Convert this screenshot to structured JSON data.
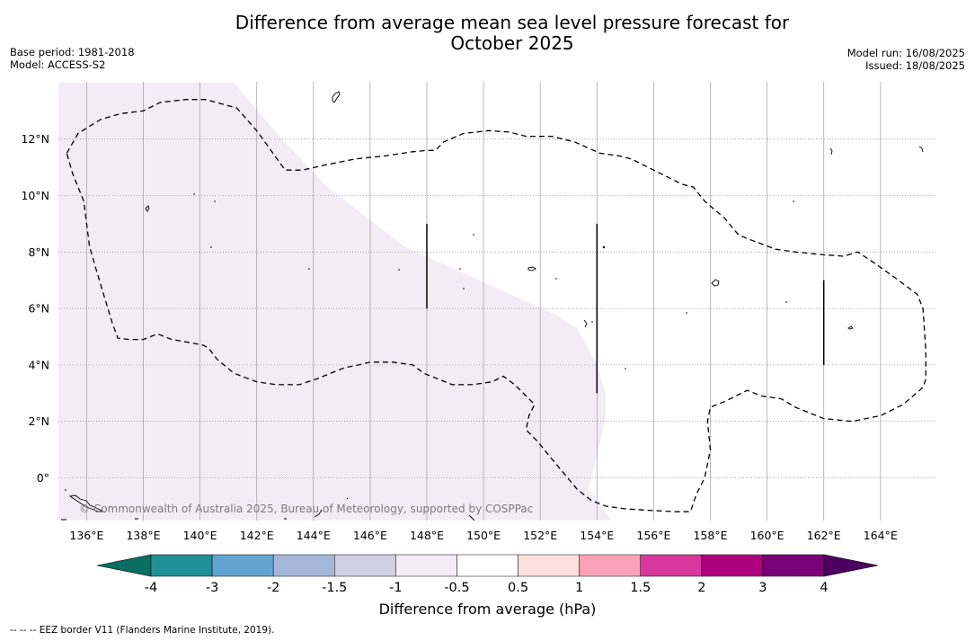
{
  "header": {
    "title_line1": "Difference from average mean sea level pressure forecast for",
    "title_line2": "October 2025",
    "base_period": "Base period: 1981-2018",
    "model": "Model: ACCESS-S2",
    "model_run": "Model run: 16/08/2025",
    "issued": "Issued: 18/08/2025"
  },
  "map": {
    "lon_range": [
      135,
      166
    ],
    "lat_range": [
      -1.5,
      14
    ],
    "lon_ticks": [
      136,
      138,
      140,
      142,
      144,
      146,
      148,
      150,
      152,
      154,
      156,
      158,
      160,
      162,
      164
    ],
    "lat_ticks": [
      0,
      2,
      4,
      6,
      8,
      10,
      12
    ],
    "lon_tick_labels": [
      "136°E",
      "138°E",
      "140°E",
      "142°E",
      "144°E",
      "146°E",
      "148°E",
      "150°E",
      "152°E",
      "154°E",
      "156°E",
      "158°E",
      "160°E",
      "162°E",
      "164°E"
    ],
    "lat_tick_labels": [
      "0°",
      "2°N",
      "4°N",
      "6°N",
      "8°N",
      "10°N",
      "12°N"
    ],
    "copyright": "© Commonwealth of Australia 2025, Bureau of Meteorology, supported by COSPPac",
    "shaded_category": "-1 to -0.5",
    "shaded_color": "#f3ebf5",
    "eez_style": "dashed",
    "shaded_region_boundary_lonlat": [
      [
        135,
        14
      ],
      [
        141.2,
        14
      ],
      [
        142.8,
        12.1
      ],
      [
        144.5,
        10.3
      ],
      [
        147.2,
        8.2
      ],
      [
        150.5,
        6.7
      ],
      [
        152.5,
        5.8
      ],
      [
        153.3,
        5.3
      ],
      [
        154,
        4.0
      ],
      [
        154.3,
        3.0
      ],
      [
        154.3,
        2.1
      ],
      [
        154,
        0.8
      ],
      [
        153.7,
        -0.4
      ],
      [
        154.5,
        -1.5
      ],
      [
        135,
        -1.5
      ]
    ],
    "eez_boundary_lonlat": [
      [
        135.3,
        11.5
      ],
      [
        135.7,
        12.2
      ],
      [
        136.5,
        12.7
      ],
      [
        137.2,
        12.9
      ],
      [
        138.0,
        13.0
      ],
      [
        138.6,
        13.3
      ],
      [
        139.5,
        13.4
      ],
      [
        140.2,
        13.4
      ],
      [
        141.3,
        13.1
      ],
      [
        142.0,
        12.3
      ],
      [
        142.5,
        11.6
      ],
      [
        143.0,
        10.9
      ],
      [
        143.6,
        10.9
      ],
      [
        144.5,
        11.1
      ],
      [
        145.5,
        11.3
      ],
      [
        146.5,
        11.4
      ],
      [
        147.5,
        11.55
      ],
      [
        148.0,
        11.6
      ],
      [
        148.3,
        11.6
      ],
      [
        148.6,
        11.9
      ],
      [
        149.3,
        12.2
      ],
      [
        150.2,
        12.3
      ],
      [
        150.9,
        12.25
      ],
      [
        151.5,
        12.1
      ],
      [
        152.4,
        12.1
      ],
      [
        153.2,
        11.9
      ],
      [
        154.1,
        11.5
      ],
      [
        154.8,
        11.4
      ],
      [
        155.2,
        11.3
      ],
      [
        156.0,
        10.9
      ],
      [
        157.0,
        10.4
      ],
      [
        157.4,
        10.3
      ],
      [
        157.8,
        9.8
      ],
      [
        158.5,
        9.2
      ],
      [
        159.0,
        8.6
      ],
      [
        159.5,
        8.4
      ],
      [
        160.3,
        8.1
      ],
      [
        161.0,
        8.0
      ],
      [
        162.0,
        7.9
      ],
      [
        162.7,
        7.85
      ],
      [
        163.2,
        8.0
      ],
      [
        163.8,
        7.6
      ],
      [
        164.5,
        7.1
      ],
      [
        165.3,
        6.5
      ],
      [
        165.5,
        6.0
      ],
      [
        165.6,
        4.5
      ],
      [
        165.6,
        3.5
      ],
      [
        165.5,
        3.2
      ],
      [
        164.8,
        2.6
      ],
      [
        164.0,
        2.2
      ],
      [
        163.0,
        2.0
      ],
      [
        162.0,
        2.1
      ],
      [
        161.0,
        2.5
      ],
      [
        160.5,
        2.8
      ],
      [
        159.8,
        2.9
      ],
      [
        159.3,
        3.1
      ],
      [
        158.5,
        2.7
      ],
      [
        158.0,
        2.5
      ],
      [
        157.9,
        2.0
      ],
      [
        158.0,
        1.0
      ],
      [
        157.8,
        0.0
      ],
      [
        157.5,
        -0.6
      ],
      [
        157.3,
        -1.2
      ],
      [
        156.8,
        -1.2
      ],
      [
        155.8,
        -1.15
      ],
      [
        155.0,
        -1.1
      ],
      [
        154.3,
        -1.0
      ],
      [
        153.8,
        -0.8
      ],
      [
        153.3,
        -0.4
      ],
      [
        152.8,
        0.2
      ],
      [
        152.3,
        0.8
      ],
      [
        151.9,
        1.3
      ],
      [
        151.5,
        1.7
      ],
      [
        151.6,
        2.2
      ],
      [
        151.8,
        2.6
      ],
      [
        151.4,
        3.0
      ],
      [
        151.1,
        3.3
      ],
      [
        150.7,
        3.6
      ],
      [
        150.3,
        3.4
      ],
      [
        149.6,
        3.3
      ],
      [
        148.9,
        3.3
      ],
      [
        148.4,
        3.5
      ],
      [
        147.9,
        3.7
      ],
      [
        147.5,
        4.0
      ],
      [
        146.8,
        4.1
      ],
      [
        146.0,
        4.1
      ],
      [
        145.6,
        4.0
      ],
      [
        145.1,
        3.9
      ],
      [
        144.6,
        3.7
      ],
      [
        144.1,
        3.5
      ],
      [
        143.5,
        3.3
      ],
      [
        142.7,
        3.3
      ],
      [
        142.0,
        3.4
      ],
      [
        141.2,
        3.7
      ],
      [
        140.6,
        4.2
      ],
      [
        140.3,
        4.6
      ],
      [
        140.1,
        4.7
      ],
      [
        139.6,
        4.8
      ],
      [
        139.0,
        4.9
      ],
      [
        138.5,
        5.1
      ],
      [
        138.0,
        4.9
      ],
      [
        137.5,
        4.9
      ],
      [
        137.1,
        4.95
      ],
      [
        136.9,
        5.5
      ],
      [
        136.6,
        6.5
      ],
      [
        136.3,
        7.5
      ],
      [
        136.1,
        8.2
      ],
      [
        136.0,
        9.0
      ],
      [
        135.9,
        9.8
      ],
      [
        135.7,
        10.3
      ],
      [
        135.5,
        10.8
      ],
      [
        135.3,
        11.5
      ]
    ],
    "eez_segments_lonlat": [
      [
        [
          148,
          6
        ],
        [
          148,
          9
        ]
      ],
      [
        [
          154,
          3
        ],
        [
          154,
          9
        ]
      ],
      [
        [
          162,
          4
        ],
        [
          162,
          7
        ]
      ]
    ]
  },
  "colorbar": {
    "title": "Difference from average (hPa)",
    "tick_labels": [
      "-4",
      "-3",
      "-2",
      "-1.5",
      "-1",
      "-0.5",
      "0.5",
      "1",
      "1.5",
      "2",
      "3",
      "4"
    ],
    "bins": [
      {
        "range": "-4 to -3",
        "color": "#1f9097"
      },
      {
        "range": "-3 to -2",
        "color": "#62a4cf"
      },
      {
        "range": "-2 to -1.5",
        "color": "#a5b8da"
      },
      {
        "range": "-1.5 to -1",
        "color": "#d1cfe3"
      },
      {
        "range": "-1 to -0.5",
        "color": "#f3ebf5"
      },
      {
        "range": "-0.5 to 0.5",
        "color": "#ffffff"
      },
      {
        "range": "0.5 to 1",
        "color": "#fde0dd"
      },
      {
        "range": "1 to 1.5",
        "color": "#f9a2b8"
      },
      {
        "range": "1.5 to 2",
        "color": "#d8389e"
      },
      {
        "range": "2 to 3",
        "color": "#ae017e"
      },
      {
        "range": "3 to 4",
        "color": "#7a0177"
      }
    ],
    "under_color": "#0b6e62",
    "over_color": "#4d0060"
  },
  "footnote": "--  --  -- EEZ border V11 (Flanders Marine Institute, 2019)."
}
